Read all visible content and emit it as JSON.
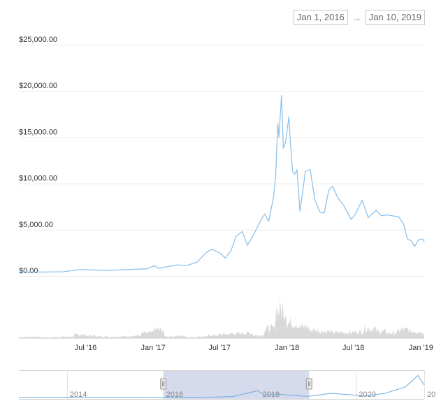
{
  "date_range": {
    "from": "Jan 1, 2016",
    "arrow": "→",
    "to": "Jan 10, 2019"
  },
  "colors": {
    "line": "#8fc3ec",
    "volume": "#d9d9d9",
    "grid": "#ececec",
    "selection": "#d5daec",
    "handle": "#e6e6e6"
  },
  "chart_data": {
    "type": "line",
    "y_ticks": [
      "$0.00",
      "$5,000.00",
      "$10,000.00",
      "$15,000.00",
      "$20,000.00",
      "$25,000.00"
    ],
    "ylim": [
      0,
      25000
    ],
    "x_ticks": [
      "Jul '16",
      "Jan '17",
      "Jul '17",
      "Jan '18",
      "Jul '18",
      "Jan '19"
    ],
    "price_series": {
      "name": "",
      "points": [
        [
          "2016-01-01",
          430
        ],
        [
          "2016-03-01",
          420
        ],
        [
          "2016-05-01",
          450
        ],
        [
          "2016-06-15",
          690
        ],
        [
          "2016-07-15",
          660
        ],
        [
          "2016-09-01",
          600
        ],
        [
          "2016-11-01",
          700
        ],
        [
          "2016-12-15",
          780
        ],
        [
          "2017-01-05",
          1100
        ],
        [
          "2017-01-15",
          820
        ],
        [
          "2017-02-15",
          1050
        ],
        [
          "2017-03-10",
          1200
        ],
        [
          "2017-04-01",
          1100
        ],
        [
          "2017-05-01",
          1500
        ],
        [
          "2017-05-25",
          2500
        ],
        [
          "2017-06-10",
          2900
        ],
        [
          "2017-07-01",
          2500
        ],
        [
          "2017-07-16",
          1950
        ],
        [
          "2017-08-01",
          2700
        ],
        [
          "2017-08-15",
          4300
        ],
        [
          "2017-09-01",
          4800
        ],
        [
          "2017-09-15",
          3300
        ],
        [
          "2017-10-01",
          4400
        ],
        [
          "2017-10-20",
          5900
        ],
        [
          "2017-11-01",
          6700
        ],
        [
          "2017-11-12",
          5900
        ],
        [
          "2017-11-25",
          8500
        ],
        [
          "2017-12-01",
          10800
        ],
        [
          "2017-12-07",
          16500
        ],
        [
          "2017-12-10",
          15000
        ],
        [
          "2017-12-17",
          19500
        ],
        [
          "2017-12-22",
          13800
        ],
        [
          "2017-12-28",
          14500
        ],
        [
          "2018-01-06",
          17200
        ],
        [
          "2018-01-10",
          14500
        ],
        [
          "2018-01-16",
          11300
        ],
        [
          "2018-01-22",
          11000
        ],
        [
          "2018-01-28",
          11500
        ],
        [
          "2018-02-05",
          7000
        ],
        [
          "2018-02-10",
          8300
        ],
        [
          "2018-02-20",
          11300
        ],
        [
          "2018-03-05",
          11500
        ],
        [
          "2018-03-18",
          8200
        ],
        [
          "2018-04-01",
          6900
        ],
        [
          "2018-04-12",
          6800
        ],
        [
          "2018-04-25",
          9300
        ],
        [
          "2018-05-05",
          9700
        ],
        [
          "2018-05-20",
          8400
        ],
        [
          "2018-06-05",
          7600
        ],
        [
          "2018-06-25",
          6100
        ],
        [
          "2018-07-05",
          6600
        ],
        [
          "2018-07-25",
          8200
        ],
        [
          "2018-08-10",
          6300
        ],
        [
          "2018-09-01",
          7100
        ],
        [
          "2018-09-15",
          6500
        ],
        [
          "2018-10-01",
          6600
        ],
        [
          "2018-11-01",
          6400
        ],
        [
          "2018-11-15",
          5600
        ],
        [
          "2018-11-25",
          4000
        ],
        [
          "2018-12-05",
          3800
        ],
        [
          "2018-12-15",
          3200
        ],
        [
          "2018-12-25",
          3900
        ],
        [
          "2019-01-05",
          4000
        ],
        [
          "2019-01-10",
          3700
        ]
      ]
    },
    "volume_series": {
      "name": "",
      "points": [
        [
          "2016-01",
          0.04
        ],
        [
          "2016-02",
          0.05
        ],
        [
          "2016-03",
          0.03
        ],
        [
          "2016-04",
          0.04
        ],
        [
          "2016-05",
          0.05
        ],
        [
          "2016-06",
          0.12
        ],
        [
          "2016-07",
          0.09
        ],
        [
          "2016-08",
          0.06
        ],
        [
          "2016-09",
          0.05
        ],
        [
          "2016-10",
          0.06
        ],
        [
          "2016-11",
          0.09
        ],
        [
          "2016-12",
          0.18
        ],
        [
          "2017-01",
          0.3
        ],
        [
          "2017-02",
          0.06
        ],
        [
          "2017-03",
          0.08
        ],
        [
          "2017-04",
          0.04
        ],
        [
          "2017-05",
          0.06
        ],
        [
          "2017-06",
          0.1
        ],
        [
          "2017-07",
          0.14
        ],
        [
          "2017-08",
          0.16
        ],
        [
          "2017-09",
          0.18
        ],
        [
          "2017-10",
          0.1
        ],
        [
          "2017-11",
          0.35
        ],
        [
          "2017-12",
          1.0
        ],
        [
          "2018-01",
          0.55
        ],
        [
          "2018-02",
          0.4
        ],
        [
          "2018-03",
          0.28
        ],
        [
          "2018-04",
          0.24
        ],
        [
          "2018-05",
          0.2
        ],
        [
          "2018-06",
          0.2
        ],
        [
          "2018-07",
          0.22
        ],
        [
          "2018-08",
          0.35
        ],
        [
          "2018-09",
          0.24
        ],
        [
          "2018-10",
          0.18
        ],
        [
          "2018-11",
          0.3
        ],
        [
          "2018-12",
          0.24
        ],
        [
          "2019-01",
          0.2
        ]
      ]
    },
    "navigator": {
      "x_ticks": [
        "2014",
        "2016",
        "2018",
        "2020",
        "20"
      ],
      "selected_from": "Jan 1, 2016",
      "selected_to": "Jan 10, 2019"
    }
  }
}
